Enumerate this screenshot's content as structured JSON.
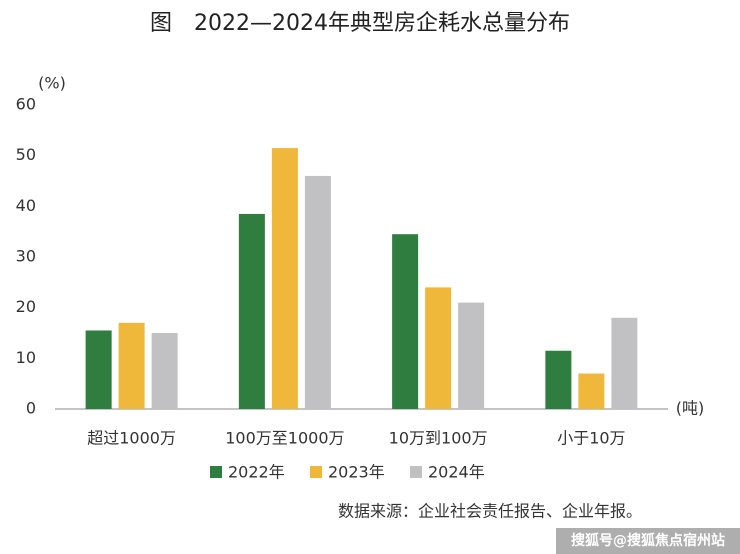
{
  "chart_data": {
    "type": "bar",
    "title": "图　2022—2024年典型房企耗水总量分布",
    "y_unit": "(%)",
    "x_unit": "(吨)",
    "categories": [
      "超过1000万",
      "100万至1000万",
      "10万到100万",
      "小于10万"
    ],
    "series": [
      {
        "name": "2022年",
        "color": "#2f7d3f",
        "values": [
          15.5,
          38.5,
          34.5,
          11.5
        ]
      },
      {
        "name": "2023年",
        "color": "#f0b83a",
        "values": [
          17,
          51.5,
          24,
          7
        ]
      },
      {
        "name": "2024年",
        "color": "#c1c1c3",
        "values": [
          15,
          46,
          21,
          18
        ]
      }
    ],
    "ylim": [
      0,
      60
    ],
    "yticks": [
      0,
      10,
      20,
      30,
      40,
      50,
      60
    ],
    "source": "数据来源：企业社会责任报告、企业年报。",
    "watermark": "搜狐号@搜狐焦点宿州站"
  }
}
